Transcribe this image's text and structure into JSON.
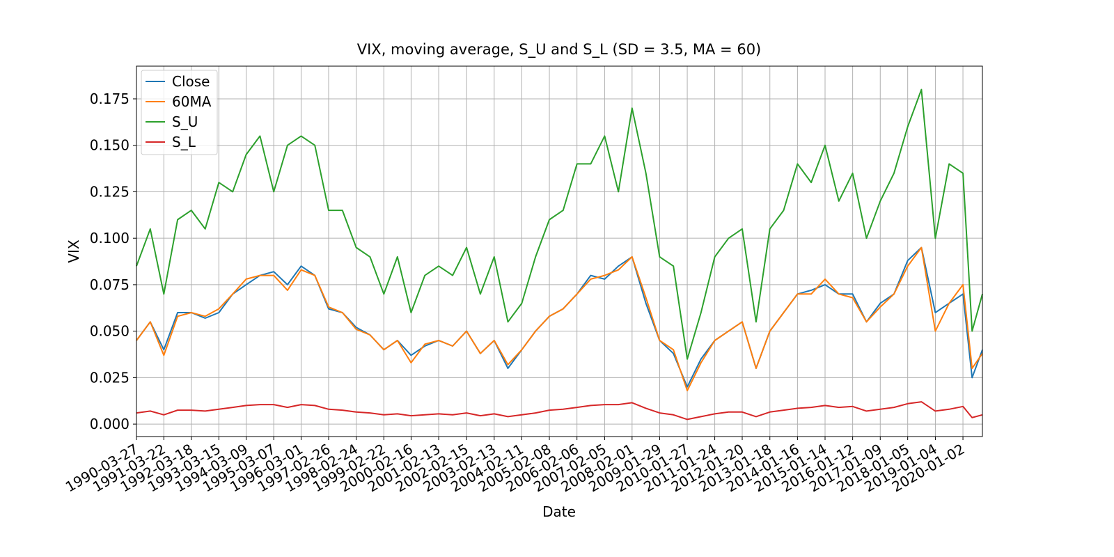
{
  "chart_data": {
    "type": "line",
    "title": "VIX, moving average, S_U and S_L (SD = 3.5, MA = 60)",
    "x_label": "Date",
    "y_label": "VIX",
    "x": [
      "1990-03-27",
      "1990-09-24",
      "1991-03-22",
      "1991-09-19",
      "1992-03-18",
      "1992-09-16",
      "1993-03-15",
      "1993-09-13",
      "1994-03-09",
      "1994-09-07",
      "1995-03-07",
      "1995-09-04",
      "1996-03-01",
      "1996-08-29",
      "1997-02-26",
      "1997-08-26",
      "1998-02-24",
      "1998-08-24",
      "1999-02-22",
      "1999-08-20",
      "2000-02-16",
      "2000-08-15",
      "2001-02-13",
      "2001-08-15",
      "2002-02-15",
      "2002-08-15",
      "2003-02-13",
      "2003-08-13",
      "2004-02-11",
      "2004-08-10",
      "2005-02-08",
      "2005-08-08",
      "2006-02-06",
      "2006-08-06",
      "2007-02-05",
      "2007-08-05",
      "2008-02-01",
      "2008-08-01",
      "2009-01-29",
      "2009-07-29",
      "2010-01-27",
      "2010-07-27",
      "2011-01-24",
      "2011-07-24",
      "2012-01-20",
      "2012-07-20",
      "2013-01-18",
      "2013-07-18",
      "2014-01-16",
      "2014-07-16",
      "2015-01-14",
      "2015-07-14",
      "2016-01-12",
      "2016-07-12",
      "2017-01-09",
      "2017-07-09",
      "2018-01-05",
      "2018-07-05",
      "2019-01-04",
      "2019-07-04",
      "2020-01-02",
      "2020-05-01",
      "2020-09-14"
    ],
    "series": [
      {
        "name": "Close",
        "color": "#1f77b4",
        "values": [
          0.045,
          0.055,
          0.04,
          0.06,
          0.06,
          0.057,
          0.06,
          0.07,
          0.075,
          0.08,
          0.082,
          0.075,
          0.085,
          0.08,
          0.062,
          0.06,
          0.052,
          0.048,
          0.04,
          0.045,
          0.037,
          0.042,
          0.045,
          0.042,
          0.05,
          0.038,
          0.045,
          0.03,
          0.04,
          0.05,
          0.058,
          0.062,
          0.07,
          0.08,
          0.078,
          0.085,
          0.09,
          0.065,
          0.045,
          0.038,
          0.02,
          0.035,
          0.045,
          0.05,
          0.055,
          0.03,
          0.05,
          0.06,
          0.07,
          0.072,
          0.075,
          0.07,
          0.07,
          0.055,
          0.065,
          0.07,
          0.088,
          0.095,
          0.06,
          0.065,
          0.07,
          0.025,
          0.04
        ]
      },
      {
        "name": "60MA",
        "color": "#ff7f0e",
        "values": [
          0.045,
          0.055,
          0.037,
          0.058,
          0.06,
          0.058,
          0.062,
          0.07,
          0.078,
          0.08,
          0.08,
          0.072,
          0.083,
          0.08,
          0.063,
          0.06,
          0.051,
          0.048,
          0.04,
          0.045,
          0.033,
          0.043,
          0.045,
          0.042,
          0.05,
          0.038,
          0.045,
          0.032,
          0.04,
          0.05,
          0.058,
          0.062,
          0.07,
          0.078,
          0.08,
          0.083,
          0.09,
          0.068,
          0.045,
          0.04,
          0.018,
          0.033,
          0.045,
          0.05,
          0.055,
          0.03,
          0.05,
          0.06,
          0.07,
          0.07,
          0.078,
          0.07,
          0.068,
          0.055,
          0.063,
          0.07,
          0.085,
          0.095,
          0.05,
          0.065,
          0.075,
          0.03,
          0.038
        ]
      },
      {
        "name": "S_U",
        "color": "#2ca02c",
        "values": [
          0.085,
          0.105,
          0.07,
          0.11,
          0.115,
          0.105,
          0.13,
          0.125,
          0.145,
          0.155,
          0.125,
          0.15,
          0.155,
          0.15,
          0.115,
          0.115,
          0.095,
          0.09,
          0.07,
          0.09,
          0.06,
          0.08,
          0.085,
          0.08,
          0.095,
          0.07,
          0.09,
          0.055,
          0.065,
          0.09,
          0.11,
          0.115,
          0.14,
          0.14,
          0.155,
          0.125,
          0.17,
          0.135,
          0.09,
          0.085,
          0.035,
          0.06,
          0.09,
          0.1,
          0.105,
          0.055,
          0.105,
          0.115,
          0.14,
          0.13,
          0.15,
          0.12,
          0.135,
          0.1,
          0.12,
          0.135,
          0.16,
          0.18,
          0.1,
          0.14,
          0.135,
          0.05,
          0.07
        ]
      },
      {
        "name": "S_L",
        "color": "#d62728",
        "values": [
          0.006,
          0.007,
          0.005,
          0.0075,
          0.0075,
          0.007,
          0.008,
          0.009,
          0.01,
          0.0105,
          0.0105,
          0.009,
          0.0105,
          0.01,
          0.008,
          0.0075,
          0.0065,
          0.006,
          0.005,
          0.0055,
          0.0045,
          0.005,
          0.0055,
          0.005,
          0.006,
          0.0045,
          0.0055,
          0.004,
          0.005,
          0.006,
          0.0075,
          0.008,
          0.009,
          0.01,
          0.0105,
          0.0105,
          0.0115,
          0.0085,
          0.006,
          0.005,
          0.0025,
          0.004,
          0.0055,
          0.0065,
          0.0065,
          0.004,
          0.0065,
          0.0075,
          0.0085,
          0.009,
          0.01,
          0.009,
          0.0095,
          0.007,
          0.008,
          0.009,
          0.011,
          0.012,
          0.007,
          0.008,
          0.0095,
          0.0035,
          0.005
        ]
      }
    ],
    "xlim": [
      "1990-03-27",
      "2020-09-14"
    ],
    "xticks": [
      "1990-03-27",
      "1991-03-22",
      "1992-03-18",
      "1993-03-15",
      "1994-03-09",
      "1995-03-07",
      "1996-03-01",
      "1997-02-26",
      "1998-02-24",
      "1999-02-22",
      "2000-02-16",
      "2001-02-13",
      "2002-02-15",
      "2003-02-13",
      "2004-02-11",
      "2005-02-08",
      "2006-02-06",
      "2007-02-05",
      "2008-02-01",
      "2009-01-29",
      "2010-01-27",
      "2011-01-24",
      "2012-01-20",
      "2013-01-18",
      "2014-01-16",
      "2015-01-14",
      "2016-01-12",
      "2017-01-09",
      "2018-01-05",
      "2019-01-04",
      "2020-01-02"
    ],
    "ylim": [
      -0.0067,
      0.1926
    ],
    "yticks": [
      {
        "value": 0,
        "label": "0.000"
      },
      0.025,
      {
        "value": 0.05,
        "label": "0.050"
      },
      0.075,
      {
        "value": 0.1,
        "label": "0.100"
      },
      0.125,
      {
        "value": 0.15,
        "label": "0.150"
      },
      0.175
    ],
    "grid": true,
    "legend": "upper left"
  }
}
